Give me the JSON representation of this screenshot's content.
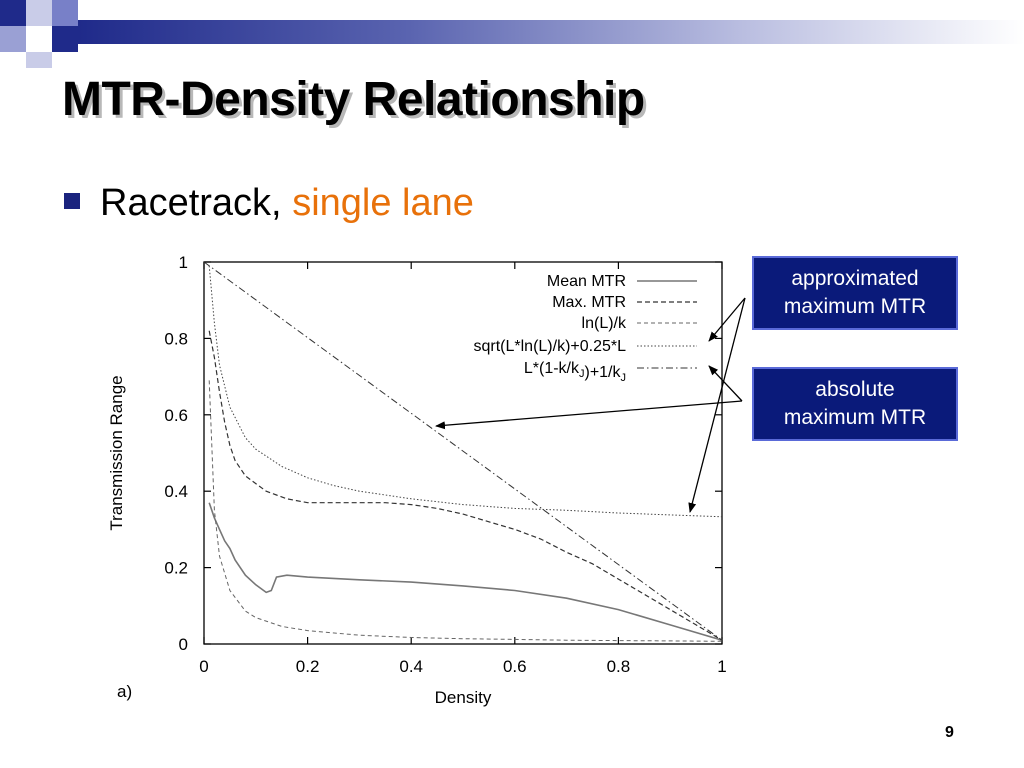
{
  "slide": {
    "title": "MTR-Density Relationship",
    "bullet_text": "Racetrack,",
    "bullet_highlight": "single lane",
    "page_number": "9",
    "accent_color": "#1f2a8a",
    "highlight_color": "#e8710a"
  },
  "callouts": {
    "approx": {
      "line1": "approximated",
      "line2": "maximum MTR"
    },
    "absolute": {
      "line1": "absolute",
      "line2": "maximum MTR"
    }
  },
  "chart_data": {
    "type": "line",
    "panel_label": "a)",
    "xlabel": "Density",
    "ylabel": "Transmission Range",
    "xlim": [
      0,
      1
    ],
    "ylim": [
      0,
      1
    ],
    "xticks": [
      "0",
      "0.2",
      "0.4",
      "0.6",
      "0.8",
      "1"
    ],
    "yticks": [
      "0",
      "0.2",
      "0.4",
      "0.6",
      "0.8",
      "1"
    ],
    "legend_position": "top-right",
    "series": [
      {
        "name": "Mean MTR",
        "style": "solid-gray",
        "x": [
          0.01,
          0.02,
          0.03,
          0.04,
          0.05,
          0.06,
          0.08,
          0.1,
          0.12,
          0.13,
          0.14,
          0.16,
          0.2,
          0.3,
          0.4,
          0.5,
          0.6,
          0.7,
          0.8,
          0.9,
          1.0
        ],
        "y": [
          0.37,
          0.33,
          0.3,
          0.27,
          0.25,
          0.22,
          0.18,
          0.155,
          0.135,
          0.14,
          0.175,
          0.18,
          0.175,
          0.168,
          0.162,
          0.152,
          0.14,
          0.12,
          0.09,
          0.05,
          0.01
        ]
      },
      {
        "name": "Max. MTR",
        "style": "dashed-dark",
        "x": [
          0.01,
          0.02,
          0.03,
          0.04,
          0.05,
          0.06,
          0.08,
          0.1,
          0.12,
          0.14,
          0.16,
          0.2,
          0.25,
          0.3,
          0.35,
          0.4,
          0.45,
          0.5,
          0.55,
          0.6,
          0.65,
          0.7,
          0.75,
          0.8,
          0.85,
          0.9,
          0.95,
          1.0
        ],
        "y": [
          0.82,
          0.75,
          0.66,
          0.58,
          0.52,
          0.48,
          0.44,
          0.42,
          0.4,
          0.39,
          0.38,
          0.37,
          0.37,
          0.37,
          0.37,
          0.365,
          0.355,
          0.34,
          0.32,
          0.3,
          0.275,
          0.24,
          0.21,
          0.17,
          0.13,
          0.09,
          0.05,
          0.01
        ]
      },
      {
        "name": "ln(L)/k",
        "style": "dashed-light",
        "x": [
          0.01,
          0.02,
          0.03,
          0.05,
          0.08,
          0.1,
          0.15,
          0.2,
          0.3,
          0.4,
          0.5,
          0.6,
          0.7,
          0.8,
          0.9,
          1.0
        ],
        "y": [
          0.69,
          0.35,
          0.23,
          0.14,
          0.086,
          0.069,
          0.046,
          0.035,
          0.023,
          0.017,
          0.014,
          0.012,
          0.01,
          0.009,
          0.008,
          0.007
        ]
      },
      {
        "name": "sqrt(L*ln(L)/k)+0.25*L",
        "style": "dotted",
        "x": [
          0.01,
          0.02,
          0.03,
          0.05,
          0.08,
          0.1,
          0.15,
          0.2,
          0.25,
          0.3,
          0.4,
          0.5,
          0.6,
          0.7,
          0.8,
          0.9,
          1.0
        ],
        "y": [
          0.99,
          0.84,
          0.73,
          0.62,
          0.54,
          0.51,
          0.465,
          0.435,
          0.415,
          0.4,
          0.38,
          0.365,
          0.355,
          0.35,
          0.343,
          0.338,
          0.333
        ]
      },
      {
        "name": "L*(1-k/kJ)+1/kJ",
        "style": "dashdot",
        "x": [
          0.0,
          1.0
        ],
        "y": [
          1.0,
          0.01
        ]
      }
    ]
  }
}
